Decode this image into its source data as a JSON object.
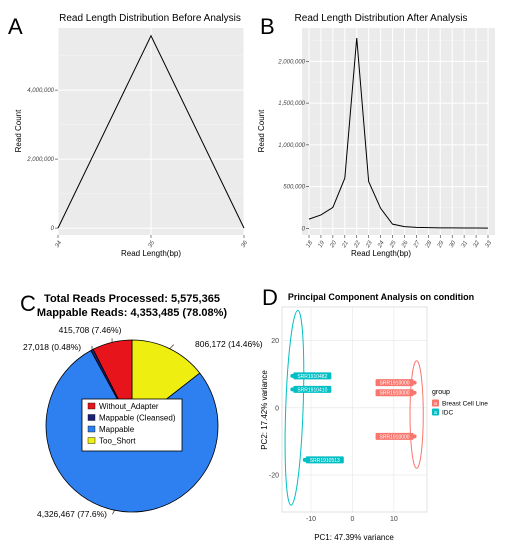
{
  "panel_letters": {
    "a": "A",
    "b": "B",
    "c": "C",
    "d": "D"
  },
  "chart_data": [
    {
      "id": "A",
      "type": "line",
      "title": "Read Length Distribution Before Analysis",
      "xlabel": "Read Length(bp)",
      "ylabel": "Read Count",
      "x": [
        34,
        35,
        36
      ],
      "y": [
        0,
        5575365,
        0
      ],
      "xticks": [
        "34",
        "35",
        "36"
      ],
      "yticks": [
        0,
        2000000,
        4000000
      ],
      "ytick_labels": [
        "0",
        "2,000,000",
        "4,000,000"
      ],
      "xlim": [
        34,
        36
      ],
      "ylim": [
        -200000,
        5800000
      ],
      "grid": true,
      "background": "#ebebeb",
      "line_color": "#000000"
    },
    {
      "id": "B",
      "type": "line",
      "title": "Read Length Distribution After Analysis",
      "xlabel": "Read Length(bp)",
      "ylabel": "Read Count",
      "x": [
        18,
        19,
        20,
        21,
        22,
        23,
        24,
        25,
        26,
        27,
        28,
        29,
        30,
        31,
        32,
        33
      ],
      "y": [
        110000,
        160000,
        250000,
        600000,
        2280000,
        560000,
        240000,
        50000,
        20000,
        12000,
        8000,
        6000,
        5000,
        4000,
        4000,
        3000
      ],
      "xticks": [
        "18",
        "19",
        "20",
        "21",
        "22",
        "23",
        "24",
        "25",
        "26",
        "27",
        "28",
        "29",
        "30",
        "31",
        "32",
        "33"
      ],
      "yticks": [
        0,
        500000,
        1000000,
        1500000,
        2000000
      ],
      "ytick_labels": [
        "0",
        "500,000",
        "1,000,000",
        "1,500,000",
        "2,000,000"
      ],
      "xlim": [
        18,
        33
      ],
      "ylim": [
        -80000,
        2400000
      ],
      "grid": true,
      "background": "#ebebeb",
      "line_color": "#000000"
    },
    {
      "id": "C",
      "type": "pie",
      "title": "Total Reads Processed: 5,575,365",
      "subtitle": "Mappable Reads: 4,353,485 (78.08%)",
      "slices": [
        {
          "name": "Without_Adapter",
          "value": 415708,
          "label": "415,708 (7.46%)",
          "color": "#e8141c"
        },
        {
          "name": "Mappable (Cleansed)",
          "value": 27018,
          "label": "27,018 (0.48%)",
          "color": "#1d2277"
        },
        {
          "name": "Mappable",
          "value": 4326467,
          "label": "4,326,467 (77.6%)",
          "color": "#2e7ff0"
        },
        {
          "name": "Too_Short",
          "value": 806172,
          "label": "806,172 (14.46%)",
          "color": "#eeee10"
        }
      ],
      "legend": [
        "Without_Adapter",
        "Mappable (Cleansed)",
        "Mappable",
        "Too_Short"
      ],
      "legend_placement": "center"
    },
    {
      "id": "D",
      "type": "scatter",
      "title": "Principal Component Analysis on condition",
      "xlabel": "PC1: 47.39% variance",
      "ylabel": "PC2: 17.42% variance",
      "xticks": [
        -10,
        0,
        10
      ],
      "yticks": [
        -20,
        0,
        20
      ],
      "xlim": [
        -17,
        18
      ],
      "ylim": [
        -31,
        30
      ],
      "legend_title": "group",
      "legend_placement": "right",
      "groups": [
        {
          "name": "Breast Cell Line",
          "color": "#f8766d"
        },
        {
          "name": "IDC",
          "color": "#00bfc4"
        }
      ],
      "points": [
        {
          "label": "SRR1910000",
          "group": "Breast Cell Line",
          "x": 15,
          "y": 7.5
        },
        {
          "label": "SRR1910000",
          "group": "Breast Cell Line",
          "x": 15,
          "y": 4.5
        },
        {
          "label": "SRR1910000",
          "group": "Breast Cell Line",
          "x": 15,
          "y": -8.5
        },
        {
          "label": "SRR1910482",
          "group": "IDC",
          "x": -14.5,
          "y": 9.5
        },
        {
          "label": "SRR1910410",
          "group": "IDC",
          "x": -14.5,
          "y": 5.5
        },
        {
          "label": "SRR1910513",
          "group": "IDC",
          "x": -11.5,
          "y": -15.5
        }
      ],
      "ellipses": [
        {
          "group": "Breast Cell Line",
          "cx": 15.5,
          "cy": -2,
          "rx": 1.6,
          "ry": 16
        },
        {
          "group": "IDC",
          "cx": -14,
          "cy": 0,
          "rx": 2.1,
          "ry": 29
        }
      ],
      "background": "#ffffff",
      "grid": true
    }
  ]
}
